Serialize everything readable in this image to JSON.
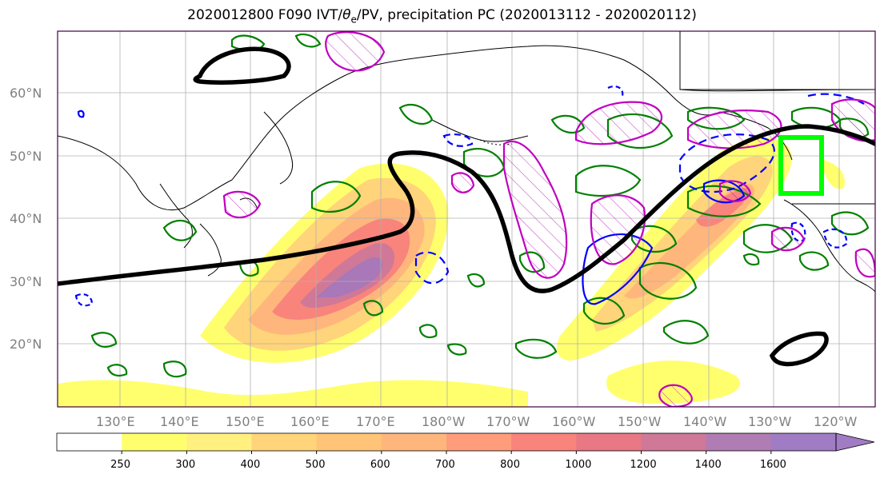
{
  "title": {
    "prefix": "2020012800 F090 IVT/",
    "theta": "θ",
    "theta_sub": "e",
    "suffix": "/PV, precipitation PC (2020013112 - 2020020112)"
  },
  "lat_labels": [
    "60°N",
    "50°N",
    "40°N",
    "30°N",
    "20°N"
  ],
  "lon_labels": [
    "130°E",
    "140°E",
    "150°E",
    "160°E",
    "170°E",
    "180°W",
    "170°W",
    "160°W",
    "150°W",
    "140°W",
    "130°W",
    "120°W"
  ],
  "colorbar": {
    "ticks": [
      "250",
      "300",
      "400",
      "500",
      "600",
      "700",
      "800",
      "1000",
      "1200",
      "1400",
      "1600"
    ],
    "colors": [
      "#ffffff",
      "#ffff6e",
      "#fff080",
      "#ffd47a",
      "#ffc478",
      "#ffb67c",
      "#ff9c7c",
      "#f8847c",
      "#e87884",
      "#d07898",
      "#b07cb4",
      "#a07cc4"
    ]
  },
  "legend_colors": {
    "ivt_high": "#a878b8",
    "pv_contour": "#000000",
    "positive_pc": "#008000",
    "negative_pc": "#0000ff",
    "theta_contour": "#c000c0",
    "target_box": "#00ff00"
  }
}
